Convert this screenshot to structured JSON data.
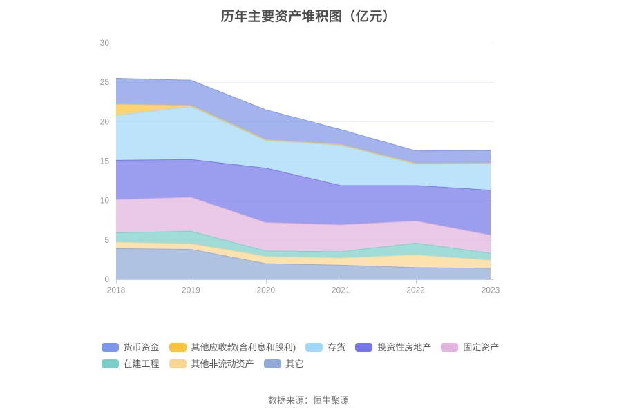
{
  "title": "历年主要资产堆积图（亿元）",
  "footer": {
    "text": "数据来源：恒生聚源"
  },
  "chart_data": {
    "type": "area",
    "stacked": true,
    "title": "历年主要资产堆积图（亿元）",
    "categories": [
      "2018",
      "2019",
      "2020",
      "2021",
      "2022",
      "2023"
    ],
    "series": [
      {
        "name": "货币资金",
        "color": "#7E96E8",
        "values": [
          3.3,
          3.2,
          3.8,
          1.9,
          1.6,
          1.6
        ]
      },
      {
        "name": "其他应收款(含利息和股利)",
        "color": "#FAC33C",
        "values": [
          1.4,
          0.15,
          0.1,
          0.1,
          0.1,
          0.05
        ]
      },
      {
        "name": "存货",
        "color": "#A2D8F7",
        "values": [
          5.7,
          6.7,
          3.5,
          5.1,
          2.7,
          3.4
        ]
      },
      {
        "name": "投资性房地产",
        "color": "#7577E8",
        "values": [
          5.0,
          4.8,
          6.9,
          5.0,
          4.5,
          5.7
        ]
      },
      {
        "name": "固定资产",
        "color": "#E0B4DC",
        "values": [
          4.2,
          4.3,
          3.6,
          3.4,
          2.8,
          2.3
        ]
      },
      {
        "name": "在建工程",
        "color": "#7BCFC9",
        "values": [
          1.2,
          1.6,
          0.7,
          0.8,
          1.5,
          0.9
        ]
      },
      {
        "name": "其他非流动资产",
        "color": "#FAD78F",
        "values": [
          0.8,
          0.7,
          0.9,
          0.9,
          1.6,
          1.0
        ]
      },
      {
        "name": "其它",
        "color": "#92AAD7",
        "values": [
          3.9,
          3.8,
          2.0,
          1.8,
          1.5,
          1.4
        ]
      }
    ],
    "stack_order": "bottom_is_last_series",
    "ylim": [
      0,
      30
    ],
    "ytick_step": 5,
    "yticks": [
      0,
      5,
      10,
      15,
      20,
      25,
      30
    ],
    "area_opacity": 0.72,
    "grid": true,
    "legend_position": "bottom",
    "axis_label_color": "#999999",
    "grid_color": "#E9EEF7",
    "axis_line_color": "#C6CAD2"
  }
}
